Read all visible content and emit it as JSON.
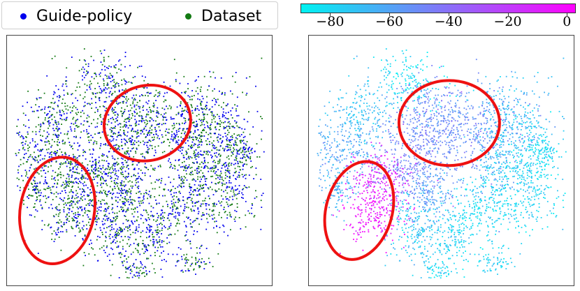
{
  "chart_data": [
    {
      "type": "scatter",
      "title": "",
      "xlabel": "",
      "ylabel": "",
      "grid": false,
      "legend_placement": "top-left",
      "series": [
        {
          "name": "Guide-policy",
          "color": "#0000ee"
        },
        {
          "name": "Dataset",
          "color": "#137a13"
        }
      ],
      "annotations": [
        {
          "shape": "ellipse",
          "color": "#ee1111",
          "cx": 0.06,
          "cy": 0.3,
          "rx": 0.33,
          "ry": 0.3,
          "angle": -15
        },
        {
          "shape": "ellipse",
          "color": "#ee1111",
          "cx": -0.62,
          "cy": -0.4,
          "rx": 0.28,
          "ry": 0.43,
          "angle": 10
        }
      ]
    },
    {
      "type": "scatter",
      "title": "",
      "xlabel": "",
      "ylabel": "",
      "grid": false,
      "colorbar": {
        "orientation": "horizontal",
        "placement": "top",
        "range": [
          -90,
          3
        ],
        "ticks": [
          -80,
          -60,
          -40,
          -20,
          0
        ],
        "tick_labels": [
          "−80",
          "−60",
          "−40",
          "−20",
          "0"
        ],
        "colormap": [
          "#00f2f2",
          "#ff00ff"
        ]
      },
      "annotations": [
        {
          "shape": "ellipse",
          "color": "#ee1111",
          "cx": 0.06,
          "cy": 0.3,
          "rx": 0.38,
          "ry": 0.34,
          "angle": 0
        },
        {
          "shape": "ellipse",
          "color": "#ee1111",
          "cx": -0.62,
          "cy": -0.4,
          "rx": 0.25,
          "ry": 0.4,
          "angle": 15
        }
      ]
    }
  ]
}
